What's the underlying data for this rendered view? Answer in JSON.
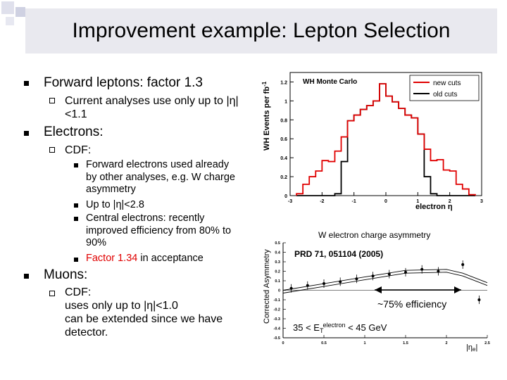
{
  "slide": {
    "title": "Improvement example: Lepton Selection",
    "bullets": {
      "fwd": "Forward leptons: factor 1.3",
      "fwd_sub": "Current analyses use only up to |η|<1.1",
      "electrons": "Electrons:",
      "cdf": "CDF:",
      "e1": "Forward electrons used already by other analyses, e.g. W charge asymmetry",
      "e2": "Up to |η|<2.8",
      "e3": "Central electrons: recently improved efficiency from 80% to 90%",
      "e4": "Factor 1.34",
      "e4b": " in acceptance",
      "muons": "Muons:",
      "mcdf1": "CDF:",
      "mcdf2": "uses only up to |η|<1.0",
      "mcdf3": "can be extended since we have",
      "mcdf4": "detector."
    }
  },
  "plot1": {
    "title": "WH Monte Carlo",
    "ylabel": "WH Events per fb",
    "ylabel_sup": "-1",
    "xlabel": "electron η",
    "legend": [
      "new cuts",
      "old cuts"
    ],
    "colors": {
      "new": "#e00000",
      "old": "#000000"
    }
  },
  "plot2": {
    "title": "W electron charge asymmetry",
    "ylabel": "Corrected Asymmetry",
    "ref": "PRD 71, 051104 (2005)",
    "efficiency": "~75% efficiency",
    "cut": "35 < E",
    "cut_sub": "T",
    "cut_sup": "electron",
    "cut_end": " < 45 GeV",
    "xlabel": "|η",
    "xlabel_sub": "e",
    "xlabel_end": "|"
  },
  "chart_data": [
    {
      "type": "bar",
      "title": "WH Monte Carlo",
      "xlabel": "electron η",
      "ylabel": "WH Events per fb-1",
      "xlim": [
        -3,
        3
      ],
      "ylim": [
        0,
        1.3
      ],
      "series": [
        {
          "name": "new cuts",
          "x": [
            -2.7,
            -2.5,
            -2.3,
            -2.1,
            -1.9,
            -1.7,
            -1.5,
            -1.3,
            -1.1,
            -0.9,
            -0.7,
            -0.5,
            -0.3,
            -0.1,
            0.1,
            0.3,
            0.5,
            0.7,
            0.9,
            1.1,
            1.3,
            1.5,
            1.7,
            1.9,
            2.1,
            2.3,
            2.5,
            2.7
          ],
          "values": [
            0.02,
            0.12,
            0.2,
            0.26,
            0.37,
            0.36,
            0.47,
            0.62,
            0.79,
            0.85,
            0.91,
            0.95,
            1.0,
            1.18,
            1.05,
            0.99,
            0.92,
            0.85,
            0.82,
            0.65,
            0.49,
            0.37,
            0.38,
            0.27,
            0.26,
            0.12,
            0.07,
            0.01
          ]
        },
        {
          "name": "old cuts",
          "x": [
            -2.7,
            -2.5,
            -2.3,
            -2.1,
            -1.9,
            -1.7,
            -1.5,
            -1.3,
            -1.1,
            -0.9,
            -0.7,
            -0.5,
            -0.3,
            -0.1,
            0.1,
            0.3,
            0.5,
            0.7,
            0.9,
            1.1,
            1.3,
            1.5,
            1.7,
            1.9,
            2.1,
            2.3,
            2.5,
            2.7
          ],
          "values": [
            0,
            0,
            0,
            0,
            0,
            0,
            0.02,
            0.36,
            0.79,
            0.85,
            0.91,
            0.95,
            1.0,
            1.18,
            1.05,
            0.99,
            0.92,
            0.85,
            0.82,
            0.65,
            0.2,
            0.02,
            0,
            0,
            0,
            0,
            0,
            0
          ]
        }
      ]
    },
    {
      "type": "scatter",
      "title": "W electron charge asymmetry",
      "xlabel": "|ηe|",
      "ylabel": "Corrected Asymmetry",
      "xlim": [
        0,
        2.5
      ],
      "ylim": [
        -0.5,
        0.5
      ],
      "x_ticks": [
        0,
        0.5,
        1,
        1.5,
        2,
        2.5
      ],
      "y_ticks": [
        -0.5,
        -0.4,
        -0.3,
        -0.2,
        -0.1,
        0,
        0.1,
        0.2,
        0.3,
        0.4,
        0.5
      ],
      "x": [
        0.1,
        0.3,
        0.5,
        0.7,
        0.9,
        1.1,
        1.3,
        1.5,
        1.7,
        1.9,
        2.2,
        2.4
      ],
      "values": [
        0.02,
        0.05,
        0.07,
        0.09,
        0.12,
        0.15,
        0.17,
        0.19,
        0.22,
        0.2,
        0.27,
        -0.1
      ],
      "theory_x": [
        0,
        0.5,
        1,
        1.5,
        2,
        2.2,
        2.5
      ],
      "theory_y": [
        0.0,
        0.07,
        0.14,
        0.21,
        0.22,
        0.18,
        0.08
      ]
    }
  ]
}
